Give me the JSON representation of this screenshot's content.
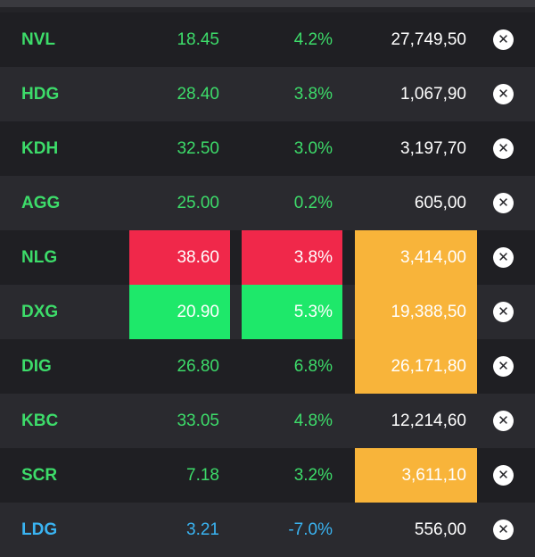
{
  "colors": {
    "up": "#3ddc6a",
    "down": "#3ab4f2",
    "neutral": "#ffffff",
    "highlight_red": "#f0284a",
    "highlight_green": "#1ee86a",
    "highlight_volume": "#f8b43a"
  },
  "rows": [
    {
      "symbol": "NVL",
      "price": "18.45",
      "change": "4.2%",
      "volume": "27,749,50",
      "trend": "up",
      "price_hl": "",
      "change_hl": "",
      "volume_hl": false,
      "close_icon": "close-circle-icon"
    },
    {
      "symbol": "HDG",
      "price": "28.40",
      "change": "3.8%",
      "volume": "1,067,90",
      "trend": "up",
      "price_hl": "",
      "change_hl": "",
      "volume_hl": false,
      "close_icon": "close-circle-icon"
    },
    {
      "symbol": "KDH",
      "price": "32.50",
      "change": "3.0%",
      "volume": "3,197,70",
      "trend": "up",
      "price_hl": "",
      "change_hl": "",
      "volume_hl": false,
      "close_icon": "close-circle-icon"
    },
    {
      "symbol": "AGG",
      "price": "25.00",
      "change": "0.2%",
      "volume": "605,00",
      "trend": "up",
      "price_hl": "",
      "change_hl": "",
      "volume_hl": false,
      "close_icon": "close-circle-icon"
    },
    {
      "symbol": "NLG",
      "price": "38.60",
      "change": "3.8%",
      "volume": "3,414,00",
      "trend": "up",
      "price_hl": "red",
      "change_hl": "red",
      "volume_hl": true,
      "close_icon": "close-circle-icon"
    },
    {
      "symbol": "DXG",
      "price": "20.90",
      "change": "5.3%",
      "volume": "19,388,50",
      "trend": "up",
      "price_hl": "green",
      "change_hl": "green",
      "volume_hl": true,
      "close_icon": "close-circle-icon"
    },
    {
      "symbol": "DIG",
      "price": "26.80",
      "change": "6.8%",
      "volume": "26,171,80",
      "trend": "up",
      "price_hl": "",
      "change_hl": "",
      "volume_hl": true,
      "close_icon": "close-circle-icon"
    },
    {
      "symbol": "KBC",
      "price": "33.05",
      "change": "4.8%",
      "volume": "12,214,60",
      "trend": "up",
      "price_hl": "",
      "change_hl": "",
      "volume_hl": false,
      "close_icon": "close-circle-icon"
    },
    {
      "symbol": "SCR",
      "price": "7.18",
      "change": "3.2%",
      "volume": "3,611,10",
      "trend": "up",
      "price_hl": "",
      "change_hl": "",
      "volume_hl": true,
      "close_icon": "close-circle-icon"
    },
    {
      "symbol": "LDG",
      "price": "3.21",
      "change": "-7.0%",
      "volume": "556,00",
      "trend": "down",
      "price_hl": "",
      "change_hl": "",
      "volume_hl": false,
      "close_icon": "close-circle-icon"
    }
  ]
}
